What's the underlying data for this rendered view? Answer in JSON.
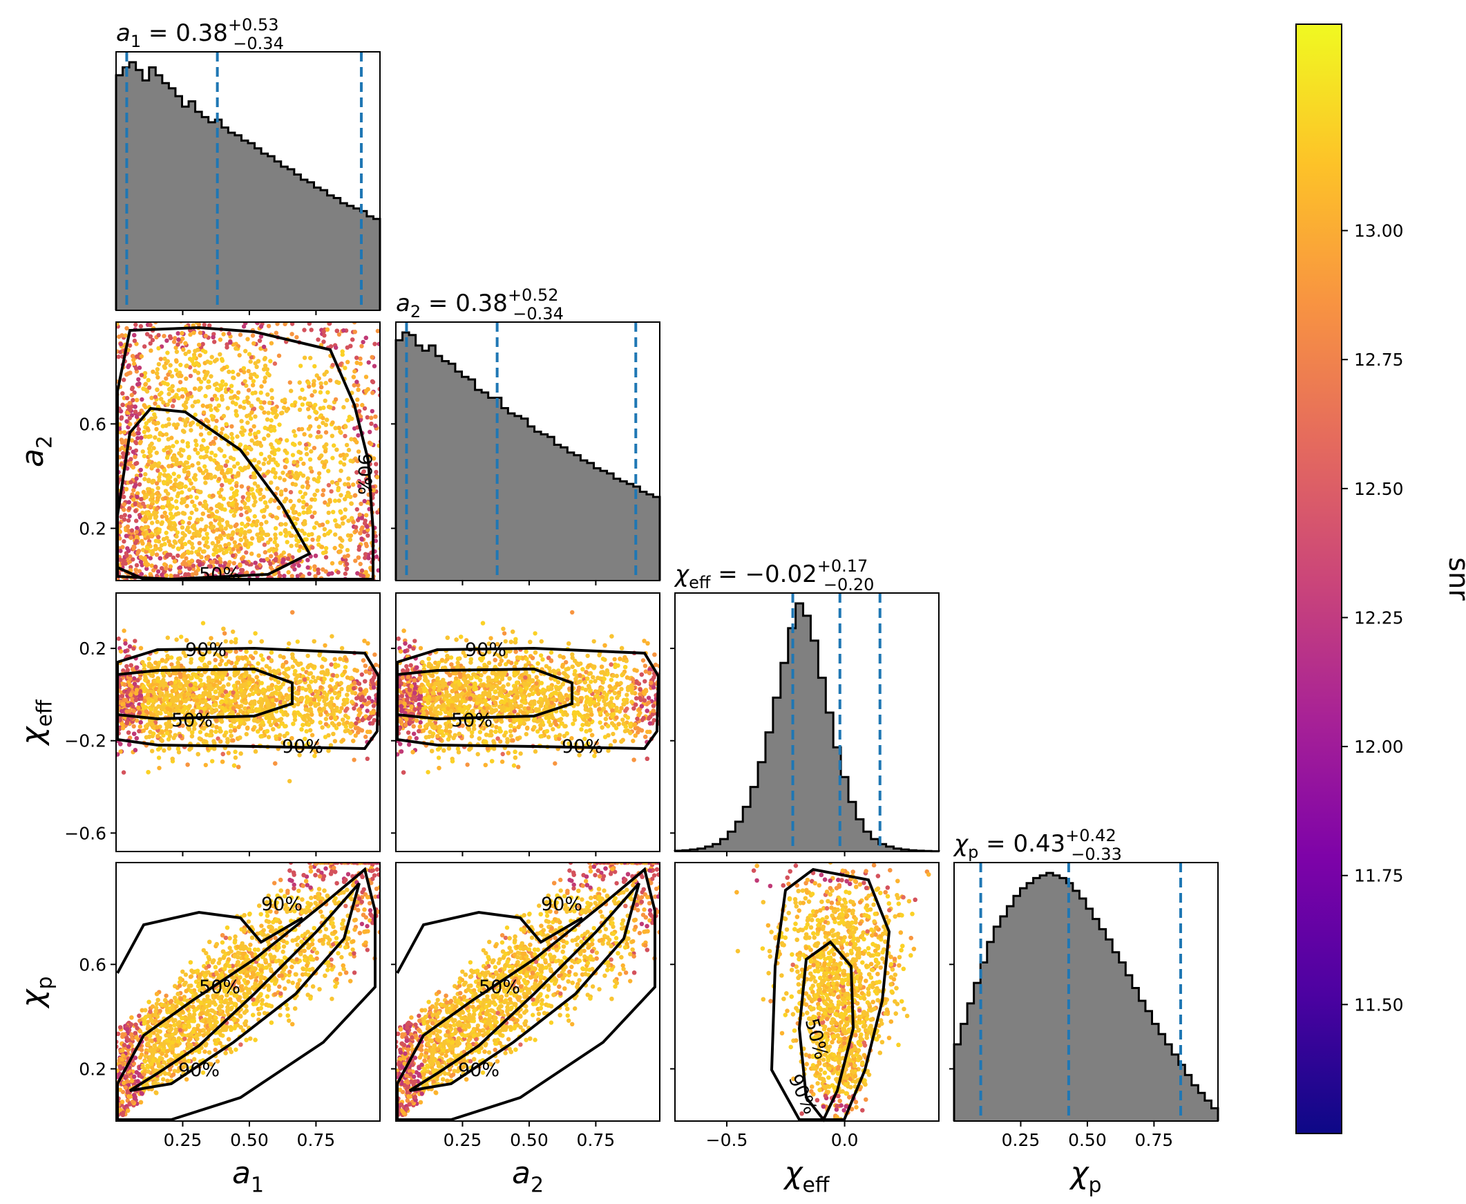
{
  "chart_data": {
    "type": "corner",
    "parameters": [
      {
        "key": "a1",
        "label": "a",
        "sub": "1",
        "title_value": "0.38",
        "plus": "+0.53",
        "minus": "−0.34",
        "quantiles": [
          0.04,
          0.38,
          0.92
        ],
        "range": [
          0.0,
          0.99
        ]
      },
      {
        "key": "a2",
        "label": "a",
        "sub": "2",
        "title_value": "0.38",
        "plus": "+0.52",
        "minus": "−0.34",
        "quantiles": [
          0.04,
          0.38,
          0.9
        ],
        "range": [
          0.0,
          0.99
        ]
      },
      {
        "key": "chi_eff",
        "label": "χ",
        "sub": "eff",
        "title_value": "−0.02",
        "plus": "+0.17",
        "minus": "−0.20",
        "quantiles": [
          -0.22,
          -0.02,
          0.15
        ],
        "range": [
          -0.72,
          0.4
        ]
      },
      {
        "key": "chi_p",
        "label": "χ",
        "sub": "p",
        "title_value": "0.43",
        "plus": "+0.42",
        "minus": "−0.33",
        "quantiles": [
          0.1,
          0.43,
          0.85
        ],
        "range": [
          0.0,
          0.99
        ]
      }
    ],
    "x_ticks": [
      {
        "values": [
          0.25,
          0.5,
          0.75
        ],
        "labels": [
          "0.25",
          "0.50",
          "0.75"
        ]
      },
      {
        "values": [
          0.25,
          0.5,
          0.75
        ],
        "labels": [
          "0.25",
          "0.50",
          "0.75"
        ]
      },
      {
        "values": [
          -0.5,
          0.0
        ],
        "labels": [
          "−0.5",
          "0.0"
        ]
      },
      {
        "values": [
          0.25,
          0.5,
          0.75
        ],
        "labels": [
          "0.25",
          "0.50",
          "0.75"
        ]
      }
    ],
    "y_ticks": {
      "a2": {
        "values": [
          0.2,
          0.6
        ],
        "labels": [
          "0.2",
          "0.6"
        ],
        "range": [
          0.0,
          0.99
        ]
      },
      "chi_eff": {
        "values": [
          -0.6,
          -0.2,
          0.2
        ],
        "labels": [
          "−0.6",
          "−0.2",
          "0.2"
        ],
        "range": [
          -0.68,
          0.44
        ]
      },
      "chi_p": {
        "values": [
          0.2,
          0.6
        ],
        "labels": [
          "0.2",
          "0.6"
        ],
        "range": [
          0.0,
          0.99
        ]
      }
    },
    "histograms": {
      "a1": [
        0.9,
        0.93,
        0.95,
        0.92,
        0.88,
        0.93,
        0.9,
        0.87,
        0.85,
        0.82,
        0.78,
        0.8,
        0.76,
        0.74,
        0.72,
        0.73,
        0.7,
        0.68,
        0.67,
        0.65,
        0.64,
        0.62,
        0.6,
        0.59,
        0.57,
        0.55,
        0.54,
        0.52,
        0.5,
        0.49,
        0.47,
        0.46,
        0.44,
        0.43,
        0.41,
        0.4,
        0.39,
        0.38,
        0.36,
        0.35
      ],
      "a2": [
        0.92,
        0.95,
        0.94,
        0.9,
        0.88,
        0.9,
        0.86,
        0.84,
        0.83,
        0.8,
        0.78,
        0.77,
        0.73,
        0.72,
        0.7,
        0.7,
        0.66,
        0.64,
        0.63,
        0.62,
        0.59,
        0.57,
        0.56,
        0.55,
        0.52,
        0.51,
        0.49,
        0.48,
        0.46,
        0.45,
        0.43,
        0.42,
        0.41,
        0.39,
        0.38,
        0.37,
        0.36,
        0.34,
        0.33,
        0.32
      ],
      "chi_eff": [
        0.003,
        0.005,
        0.008,
        0.012,
        0.02,
        0.03,
        0.05,
        0.08,
        0.12,
        0.18,
        0.26,
        0.36,
        0.48,
        0.62,
        0.76,
        0.9,
        1.0,
        0.95,
        0.85,
        0.7,
        0.56,
        0.42,
        0.3,
        0.2,
        0.13,
        0.08,
        0.05,
        0.03,
        0.02,
        0.012,
        0.008,
        0.005,
        0.003,
        0.002,
        0.001
      ],
      "chi_p": [
        0.3,
        0.38,
        0.46,
        0.54,
        0.62,
        0.7,
        0.76,
        0.8,
        0.84,
        0.88,
        0.91,
        0.93,
        0.95,
        0.96,
        0.97,
        0.96,
        0.95,
        0.93,
        0.9,
        0.87,
        0.83,
        0.79,
        0.75,
        0.71,
        0.66,
        0.62,
        0.57,
        0.52,
        0.47,
        0.43,
        0.38,
        0.34,
        0.3,
        0.26,
        0.22,
        0.18,
        0.14,
        0.11,
        0.08,
        0.05
      ]
    },
    "contour_levels": [
      "50%",
      "90%"
    ],
    "colorbar": {
      "label": "snr",
      "range": [
        11.25,
        13.4
      ],
      "ticks": [
        11.5,
        11.75,
        12.0,
        12.25,
        12.5,
        12.75,
        13.0
      ],
      "tick_labels": [
        "11.50",
        "11.75",
        "12.00",
        "12.25",
        "12.50",
        "12.75",
        "13.00"
      ],
      "colormap": "plasma"
    },
    "colors": {
      "histogram_fill": "#808080",
      "histogram_edge": "#000000",
      "quantile_line": "#1f77b4",
      "contour": "#000000",
      "points_main": "#f9c432"
    },
    "grid": false
  }
}
